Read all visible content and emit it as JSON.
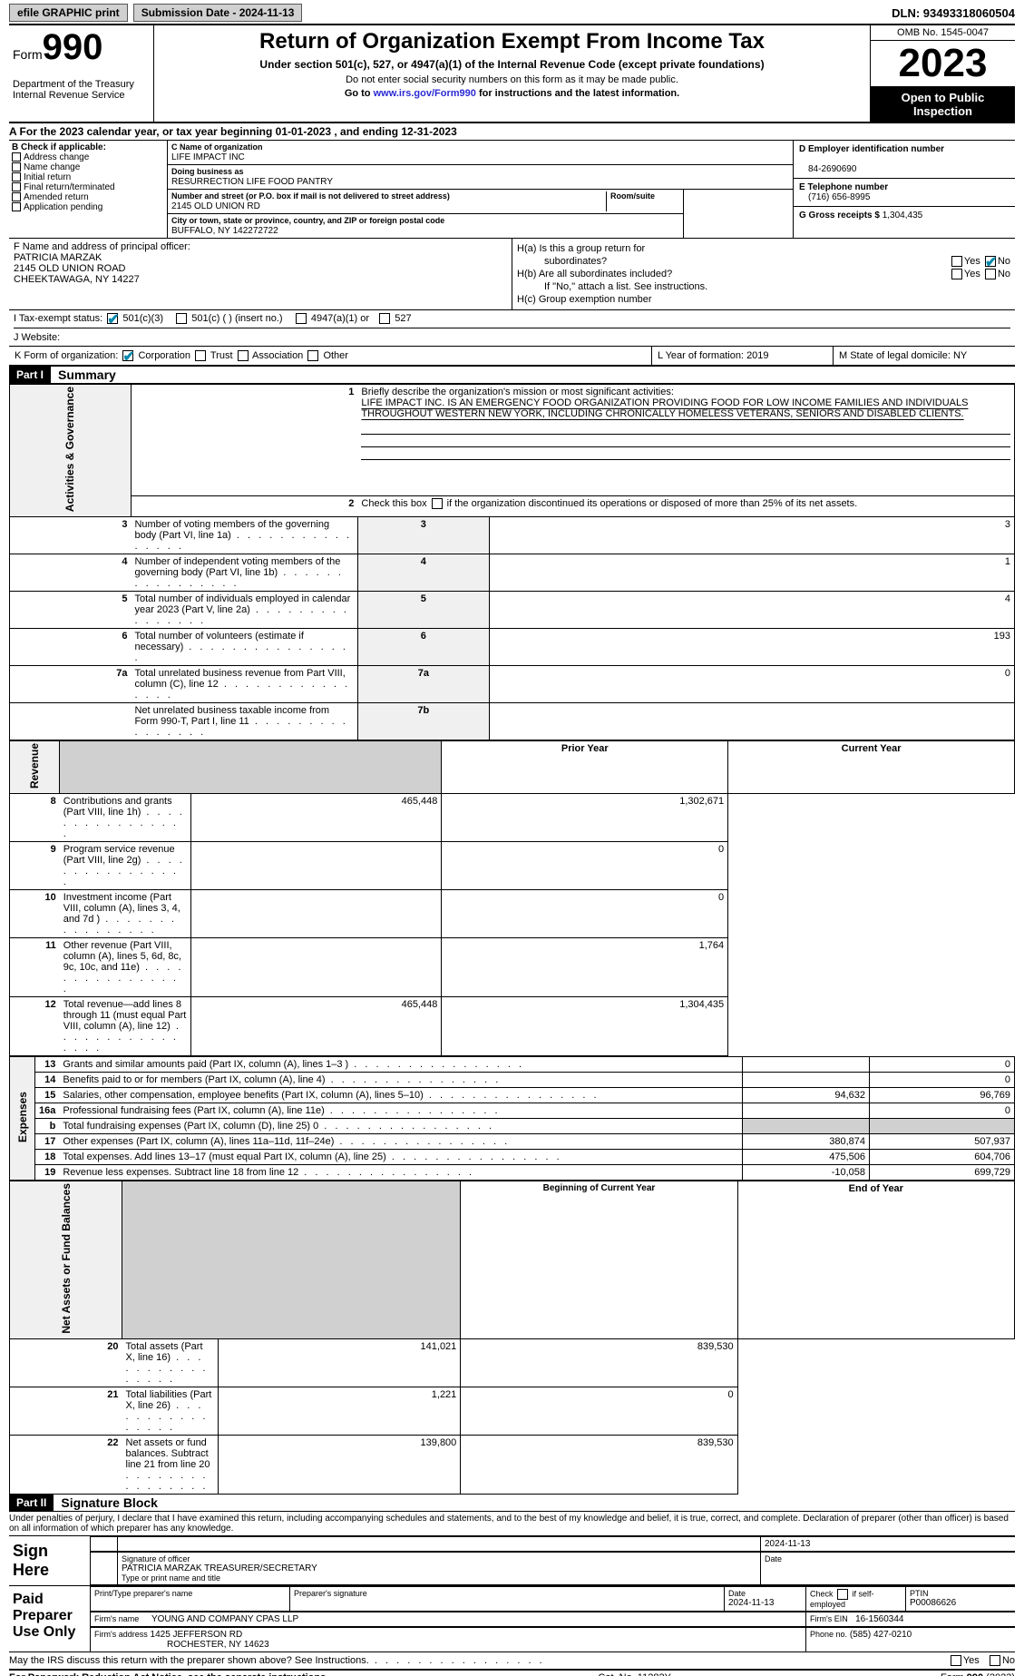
{
  "top": {
    "efile": "efile GRAPHIC print",
    "submission": "Submission Date - 2024-11-13",
    "dln": "DLN: 93493318060504"
  },
  "header": {
    "form_word": "Form",
    "form_num": "990",
    "title": "Return of Organization Exempt From Income Tax",
    "subtitle": "Under section 501(c), 527, or 4947(a)(1) of the Internal Revenue Code (except private foundations)",
    "note1": "Do not enter social security numbers on this form as it may be made public.",
    "goto_pre": "Go to ",
    "goto_link": "www.irs.gov/Form990",
    "goto_post": " for instructions and the latest information.",
    "dept": "Department of the Treasury\nInternal Revenue Service",
    "omb": "OMB No. 1545-0047",
    "year": "2023",
    "open": "Open to Public Inspection"
  },
  "lineA": "A For the 2023 calendar year, or tax year beginning 01-01-2023    , and ending 12-31-2023",
  "boxB": {
    "hdr": "B Check if applicable:",
    "items": [
      "Address change",
      "Name change",
      "Initial return",
      "Final return/terminated",
      "Amended return",
      "Application pending"
    ]
  },
  "boxC": {
    "name_lab": "C Name of organization",
    "name": "LIFE IMPACT INC",
    "dba_lab": "Doing business as",
    "dba": "RESURRECTION LIFE FOOD PANTRY",
    "street_lab": "Number and street (or P.O. box if mail is not delivered to street address)",
    "street": "2145 OLD UNION RD",
    "room_lab": "Room/suite",
    "city_lab": "City or town, state or province, country, and ZIP or foreign postal code",
    "city": "BUFFALO, NY  142272722"
  },
  "boxD": {
    "lab": "D Employer identification number",
    "val": "84-2690690",
    "e_lab": "E Telephone number",
    "e_val": "(716) 656-8995",
    "g_lab": "G Gross receipts $",
    "g_val": "1,304,435"
  },
  "boxF": {
    "lab": "F  Name and address of principal officer:",
    "name": "PATRICIA MARZAK",
    "addr1": "2145 OLD UNION ROAD",
    "addr2": "CHEEKTAWAGA, NY  14227"
  },
  "boxH": {
    "a": "H(a)  Is this a group return for",
    "a2": "subordinates?",
    "b": "H(b)  Are all subordinates included?",
    "bnote": "If \"No,\" attach a list. See instructions.",
    "c": "H(c)  Group exemption number",
    "yes": "Yes",
    "no": "No"
  },
  "boxI": {
    "lab": "I    Tax-exempt status:",
    "o1": "501(c)(3)",
    "o2": "501(c) (   ) (insert no.)",
    "o3": "4947(a)(1) or",
    "o4": "527"
  },
  "boxJ": {
    "lab": "J    Website:",
    "val": ""
  },
  "boxK": {
    "lab": "K Form of organization:",
    "o1": "Corporation",
    "o2": "Trust",
    "o3": "Association",
    "o4": "Other"
  },
  "boxL": {
    "lab": "L Year of formation:",
    "val": "2019"
  },
  "boxM": {
    "lab": "M State of legal domicile:",
    "val": "NY"
  },
  "partI": {
    "label": "Part I",
    "title": "Summary",
    "q1": "Briefly describe the organization's mission or most significant activities:",
    "mission": "LIFE IMPACT INC. IS AN EMERGENCY FOOD ORGANIZATION PROVIDING FOOD FOR LOW INCOME FAMILIES AND INDIVIDUALS THROUGHOUT WESTERN NEW YORK, INCLUDING CHRONICALLY HOMELESS VETERANS, SENIORS AND DISABLED CLIENTS.",
    "q2": "Check this box           if the organization discontinued its operations or disposed of more than 25% of its net assets.",
    "rows_ag": [
      {
        "n": "3",
        "d": "Number of voting members of the governing body (Part VI, line 1a)",
        "b": "3",
        "v": "3"
      },
      {
        "n": "4",
        "d": "Number of independent voting members of the governing body (Part VI, line 1b)",
        "b": "4",
        "v": "1"
      },
      {
        "n": "5",
        "d": "Total number of individuals employed in calendar year 2023 (Part V, line 2a)",
        "b": "5",
        "v": "4"
      },
      {
        "n": "6",
        "d": "Total number of volunteers (estimate if necessary)",
        "b": "6",
        "v": "193"
      },
      {
        "n": "7a",
        "d": "Total unrelated business revenue from Part VIII, column (C), line 12",
        "b": "7a",
        "v": "0"
      },
      {
        "n": "",
        "d": "Net unrelated business taxable income from Form 990-T, Part I, line 11",
        "b": "7b",
        "v": ""
      }
    ],
    "col_prior": "Prior Year",
    "col_curr": "Current Year",
    "rev": [
      {
        "n": "8",
        "d": "Contributions and grants (Part VIII, line 1h)",
        "p": "465,448",
        "c": "1,302,671"
      },
      {
        "n": "9",
        "d": "Program service revenue (Part VIII, line 2g)",
        "p": "",
        "c": "0"
      },
      {
        "n": "10",
        "d": "Investment income (Part VIII, column (A), lines 3, 4, and 7d )",
        "p": "",
        "c": "0"
      },
      {
        "n": "11",
        "d": "Other revenue (Part VIII, column (A), lines 5, 6d, 8c, 9c, 10c, and 11e)",
        "p": "",
        "c": "1,764"
      },
      {
        "n": "12",
        "d": "Total revenue—add lines 8 through 11 (must equal Part VIII, column (A), line 12)",
        "p": "465,448",
        "c": "1,304,435"
      }
    ],
    "exp": [
      {
        "n": "13",
        "d": "Grants and similar amounts paid (Part IX, column (A), lines 1–3 )",
        "p": "",
        "c": "0"
      },
      {
        "n": "14",
        "d": "Benefits paid to or for members (Part IX, column (A), line 4)",
        "p": "",
        "c": "0"
      },
      {
        "n": "15",
        "d": "Salaries, other compensation, employee benefits (Part IX, column (A), lines 5–10)",
        "p": "94,632",
        "c": "96,769"
      },
      {
        "n": "16a",
        "d": "Professional fundraising fees (Part IX, column (A), line 11e)",
        "p": "",
        "c": "0"
      },
      {
        "n": "b",
        "d": "Total fundraising expenses (Part IX, column (D), line 25) 0",
        "p": "GREY",
        "c": "GREY"
      },
      {
        "n": "17",
        "d": "Other expenses (Part IX, column (A), lines 11a–11d, 11f–24e)",
        "p": "380,874",
        "c": "507,937"
      },
      {
        "n": "18",
        "d": "Total expenses. Add lines 13–17 (must equal Part IX, column (A), line 25)",
        "p": "475,506",
        "c": "604,706"
      },
      {
        "n": "19",
        "d": "Revenue less expenses. Subtract line 18 from line 12",
        "p": "-10,058",
        "c": "699,729"
      }
    ],
    "col_beg": "Beginning of Current Year",
    "col_end": "End of Year",
    "net": [
      {
        "n": "20",
        "d": "Total assets (Part X, line 16)",
        "p": "141,021",
        "c": "839,530"
      },
      {
        "n": "21",
        "d": "Total liabilities (Part X, line 26)",
        "p": "1,221",
        "c": "0"
      },
      {
        "n": "22",
        "d": "Net assets or fund balances. Subtract line 21 from line 20",
        "p": "139,800",
        "c": "839,530"
      }
    ],
    "side_ag": "Activities & Governance",
    "side_rev": "Revenue",
    "side_exp": "Expenses",
    "side_net": "Net Assets or Fund Balances"
  },
  "partII": {
    "label": "Part II",
    "title": "Signature Block",
    "perjury": "Under penalties of perjury, I declare that I have examined this return, including accompanying schedules and statements, and to the best of my knowledge and belief, it is true, correct, and complete. Declaration of preparer (other than officer) is based on all information of which preparer has any knowledge.",
    "sign_here": "Sign Here",
    "sig_date": "2024-11-13",
    "sig_lab": "Signature of officer",
    "sig_name": "PATRICIA MARZAK  TREASURER/SECRETARY",
    "sig_type": "Type or print name and title",
    "date_lab": "Date",
    "paid": "Paid Preparer Use Only",
    "p_name_lab": "Print/Type preparer's name",
    "p_sig_lab": "Preparer's signature",
    "p_date": "2024-11-13",
    "p_check": "Check          if self-employed",
    "ptin_lab": "PTIN",
    "ptin": "P00086626",
    "firm_lab": "Firm's name",
    "firm": "YOUNG AND COMPANY CPAS LLP",
    "ein_lab": "Firm's EIN",
    "ein": "16-1560344",
    "addr_lab": "Firm's address",
    "addr1": "1425 JEFFERSON RD",
    "addr2": "ROCHESTER, NY  14623",
    "phone_lab": "Phone no.",
    "phone": "(585) 427-0210",
    "may": "May the IRS discuss this return with the preparer shown above? See Instructions."
  },
  "footer": {
    "l": "For Paperwork Reduction Act Notice, see the separate instructions.",
    "m": "Cat. No. 11282Y",
    "r": "Form 990 (2023)"
  }
}
